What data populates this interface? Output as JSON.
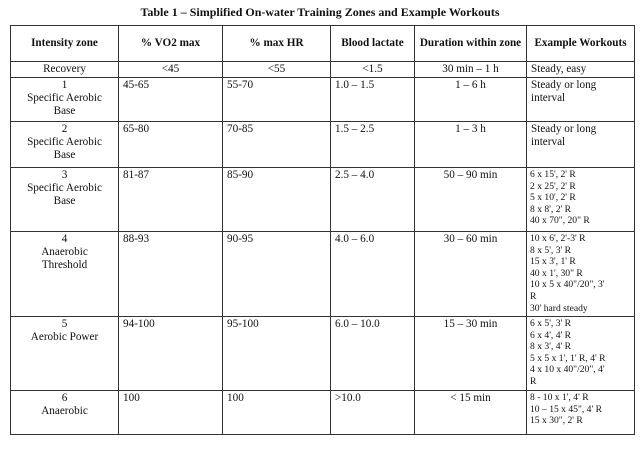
{
  "title": "Table 1 – Simplified On-water Training Zones and Example Workouts",
  "headers": [
    "Intensity zone",
    "% VO2 max",
    "% max HR",
    "Blood lactate",
    "Duration within zone",
    "Example Workouts"
  ],
  "rows": [
    {
      "zone": [
        "Recovery"
      ],
      "vo2": "<45",
      "hr": "<55",
      "lactate": "<1.5",
      "duration": "30 min – 1 h",
      "workouts": [
        "Steady, easy"
      ]
    },
    {
      "zone": [
        "1",
        "Specific Aerobic",
        "Base"
      ],
      "vo2": "45-65",
      "hr": "55-70",
      "lactate": "1.0 – 1.5",
      "duration": "1 – 6 h",
      "workouts": [
        "Steady or long interval"
      ]
    },
    {
      "zone": [
        "2",
        "Specific Aerobic",
        "Base"
      ],
      "vo2": "65-80",
      "hr": "70-85",
      "lactate": "1.5 – 2.5",
      "duration": "1 – 3 h",
      "workouts": [
        "Steady or long interval"
      ]
    },
    {
      "zone": [
        "3",
        "Specific Aerobic",
        "Base"
      ],
      "vo2": "81-87",
      "hr": "85-90",
      "lactate": "2.5 – 4.0",
      "duration": "50 – 90 min",
      "workouts": [
        "6 x 15', 2' R",
        "2 x 25', 2' R",
        "5 x 10', 2' R",
        "8 x 8', 2' R",
        "40 x 70\", 20\" R"
      ]
    },
    {
      "zone": [
        "4",
        "Anaerobic",
        "Threshold"
      ],
      "vo2": "88-93",
      "hr": "90-95",
      "lactate": "4.0 – 6.0",
      "duration": "30 – 60 min",
      "workouts": [
        "10 x 6', 2'-3' R",
        "8 x 5', 3' R",
        "15 x 3', 1' R",
        "40 x 1', 30\" R",
        "10 x 5 x 40\"/20\", 3'",
        "R",
        "30' hard steady"
      ]
    },
    {
      "zone": [
        "5",
        "Aerobic Power"
      ],
      "vo2": "94-100",
      "hr": "95-100",
      "lactate": "6.0 – 10.0",
      "duration": "15 – 30 min",
      "workouts": [
        "6 x 5', 3' R",
        "6 x 4', 4' R",
        "8 x 3', 4' R",
        "5 x 5 x 1', 1' R, 4' R",
        "4 x 10 x 40\"/20\", 4'",
        "R"
      ]
    },
    {
      "zone": [
        "6",
        "Anaerobic"
      ],
      "vo2": "100",
      "hr": "100",
      "lactate": ">10.0",
      "duration": "< 15 min",
      "workouts": [
        "8 - 10 x 1', 4' R",
        "10 – 15 x 45\", 4' R",
        "15 x 30\", 2' R"
      ]
    }
  ]
}
